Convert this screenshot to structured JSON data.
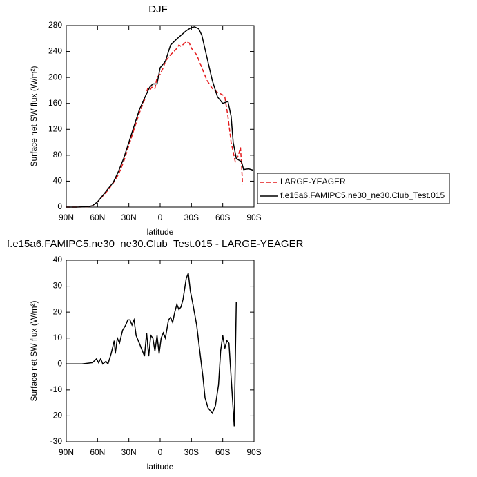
{
  "chart_data": [
    {
      "type": "line",
      "title": "DJF",
      "xlabel": "latitude",
      "ylabel": "Surface net SW flux (W/m²)",
      "xlim": [
        90,
        -90
      ],
      "xticks": [
        {
          "value": 90,
          "label": "90N"
        },
        {
          "value": 60,
          "label": "60N"
        },
        {
          "value": 30,
          "label": "30N"
        },
        0,
        {
          "value": -30,
          "label": "30S"
        },
        {
          "value": -60,
          "label": "60S"
        },
        {
          "value": -90,
          "label": "90S"
        }
      ],
      "ylim": [
        0,
        280
      ],
      "yticks": [
        0,
        40,
        80,
        120,
        160,
        200,
        240,
        280
      ],
      "legend": "right",
      "series": [
        {
          "name": "LARGE-YEAGER",
          "color": "#e41a1c",
          "line_style": "dashed",
          "x": [
            90,
            80,
            70,
            65,
            60,
            55,
            50,
            45,
            40,
            35,
            30,
            25,
            20,
            15,
            12,
            10,
            8,
            5,
            3,
            0,
            -3,
            -5,
            -10,
            -15,
            -18,
            -20,
            -25,
            -28,
            -30,
            -35,
            -40,
            -45,
            -50,
            -55,
            -60,
            -62,
            -65,
            -68,
            -72,
            -75,
            -77,
            -78,
            -79
          ],
          "values": [
            0,
            0,
            0.5,
            2,
            8,
            17,
            26,
            37,
            50,
            70,
            95,
            120,
            145,
            165,
            183,
            180,
            185,
            183,
            200,
            205,
            215,
            225,
            235,
            243,
            250,
            248,
            255,
            253,
            245,
            235,
            215,
            195,
            183,
            177,
            173,
            170,
            140,
            100,
            70,
            80,
            92,
            65,
            35
          ]
        },
        {
          "name": "f.e15a6.FAMIPC5.ne30_ne30.Club_Test.015",
          "color": "#000000",
          "line_style": "solid",
          "x": [
            90,
            80,
            70,
            65,
            60,
            55,
            50,
            45,
            40,
            35,
            30,
            25,
            20,
            15,
            10,
            7,
            3,
            0,
            -5,
            -10,
            -15,
            -20,
            -25,
            -30,
            -33,
            -37,
            -40,
            -45,
            -50,
            -55,
            -60,
            -65,
            -68,
            -70,
            -73,
            -76,
            -78,
            -80,
            -85,
            -89
          ],
          "values": [
            0,
            0,
            0.5,
            2,
            8,
            18,
            28,
            38,
            55,
            75,
            100,
            125,
            150,
            168,
            185,
            190,
            190,
            215,
            225,
            250,
            258,
            265,
            272,
            277,
            278,
            275,
            265,
            230,
            195,
            170,
            160,
            163,
            140,
            100,
            75,
            72,
            70,
            58,
            59,
            57
          ]
        }
      ]
    },
    {
      "type": "line",
      "title": "f.e15a6.FAMIPC5.ne30_ne30.Club_Test.015 - LARGE-YEAGER",
      "xlabel": "latitude",
      "ylabel": "Surface net SW flux (W/m²)",
      "xlim": [
        90,
        -90
      ],
      "xticks": [
        {
          "value": 90,
          "label": "90N"
        },
        {
          "value": 60,
          "label": "60N"
        },
        {
          "value": 30,
          "label": "30N"
        },
        0,
        {
          "value": -30,
          "label": "30S"
        },
        {
          "value": -60,
          "label": "60S"
        },
        {
          "value": -90,
          "label": "90S"
        }
      ],
      "ylim": [
        -30,
        40
      ],
      "yticks": [
        -30,
        -20,
        -10,
        0,
        10,
        20,
        30,
        40
      ],
      "series": [
        {
          "color": "#000000",
          "line_style": "solid",
          "x": [
            90,
            75,
            65,
            61,
            59,
            57,
            55,
            52,
            50,
            47,
            44,
            43,
            41,
            39,
            36,
            33,
            31,
            29,
            27,
            25,
            23,
            20,
            18,
            15,
            13,
            11,
            9,
            7,
            5,
            3,
            1,
            -1,
            -3,
            -5,
            -8,
            -10,
            -12,
            -14,
            -16,
            -18,
            -20,
            -22,
            -25,
            -27,
            -29,
            -31,
            -35,
            -38,
            -41,
            -43,
            -46,
            -50,
            -53,
            -56,
            -58,
            -60,
            -62,
            -64,
            -66,
            -71,
            -73
          ],
          "values": [
            0,
            0,
            0.5,
            2,
            0.5,
            2,
            0,
            1,
            0,
            4,
            9,
            4,
            10,
            8,
            13,
            15,
            17,
            17,
            15,
            17,
            11,
            8,
            6,
            3,
            12,
            3,
            11,
            10,
            5,
            11,
            4,
            10,
            12,
            10,
            17,
            18,
            16,
            20,
            23,
            21,
            22,
            25,
            33,
            35,
            28,
            24,
            15,
            5,
            -5,
            -13,
            -17,
            -19,
            -16,
            -8,
            5,
            11,
            6,
            9,
            8,
            -24,
            24
          ]
        }
      ]
    }
  ]
}
